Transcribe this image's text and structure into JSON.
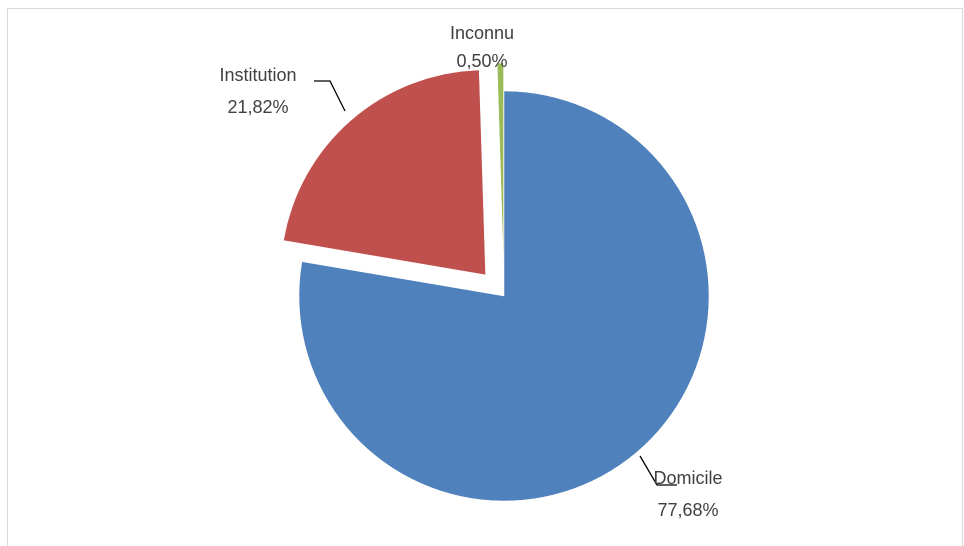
{
  "chart_data": {
    "type": "pie",
    "title": "",
    "categories": [
      "Domicile",
      "Institution",
      "Inconnu"
    ],
    "values": [
      77.68,
      21.82,
      0.5
    ],
    "value_labels": [
      "77,68%",
      "21,82%",
      "0,50%"
    ],
    "exploded": [
      false,
      true,
      true
    ],
    "colors": [
      "#4f81bd",
      "#c0504d",
      "#9bbb59"
    ],
    "legend": "none",
    "start_angle_deg": 0,
    "direction": "clockwise"
  }
}
